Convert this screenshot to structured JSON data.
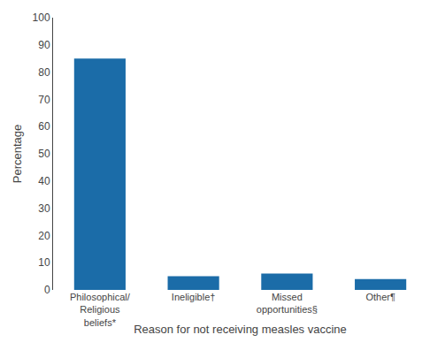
{
  "chart_data": {
    "type": "bar",
    "categories": [
      "Philosophical/\nReligious\nbeliefs*",
      "Ineligible†",
      "Missed\nopportunities§",
      "Other¶"
    ],
    "values": [
      85,
      5,
      6,
      4
    ],
    "color": "#1b6ca8",
    "xlabel": "Reason for not receiving measles vaccine",
    "ylabel": "Percentage",
    "ylim": [
      0,
      100
    ],
    "yticks": [
      0,
      10,
      20,
      30,
      40,
      50,
      60,
      70,
      80,
      90,
      100
    ],
    "grid": false
  }
}
